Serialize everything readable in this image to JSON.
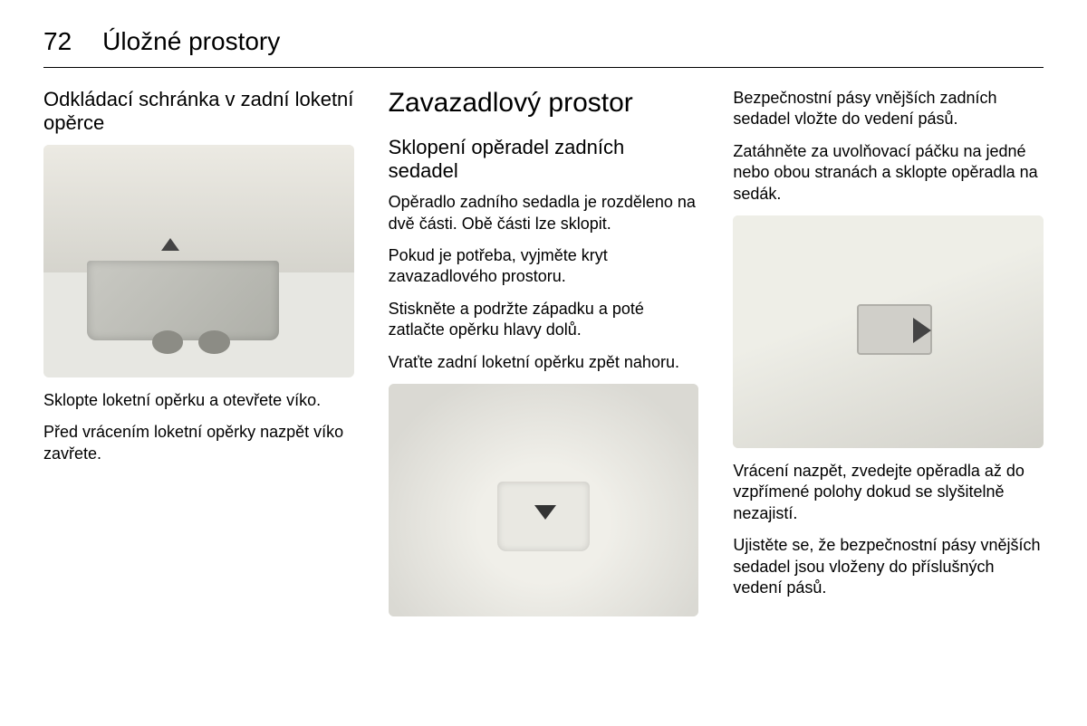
{
  "page_number": "72",
  "section_title": "Úložné prostory",
  "left": {
    "heading": "Odkládací schránka v zadní loketní opěrce",
    "p1": "Sklopte loketní opěrku a otevřete víko.",
    "p2": "Před vrácením loketní opěrky nazpět víko zavřete."
  },
  "mid": {
    "h1": "Zavazadlový prostor",
    "h2": "Sklopení opěradel zadních sedadel",
    "p1": "Opěradlo zadního sedadla je rozděleno na dvě části. Obě části lze sklopit.",
    "p2": "Pokud je potřeba, vyjměte kryt zavazadlového prostoru.",
    "p3": "Stiskněte a podržte západku a poté zatlačte opěrku hlavy dolů.",
    "p4": "Vraťte zadní loketní opěrku zpět nahoru."
  },
  "right": {
    "p1": "Bezpečnostní pásy vnějších zadních sedadel vložte do vedení pásů.",
    "p2": "Zatáhněte za uvolňovací páčku na jedné nebo obou stranách a sklopte opěradla na sedák.",
    "p3": "Vrácení nazpět, zvedejte opěradla až do vzpřímené polohy dokud se slyšitelně nezajistí.",
    "p4": "Ujistěte se, že bezpečnostní pásy vnějších sedadel jsou vloženy do příslušných vedení pásů."
  }
}
